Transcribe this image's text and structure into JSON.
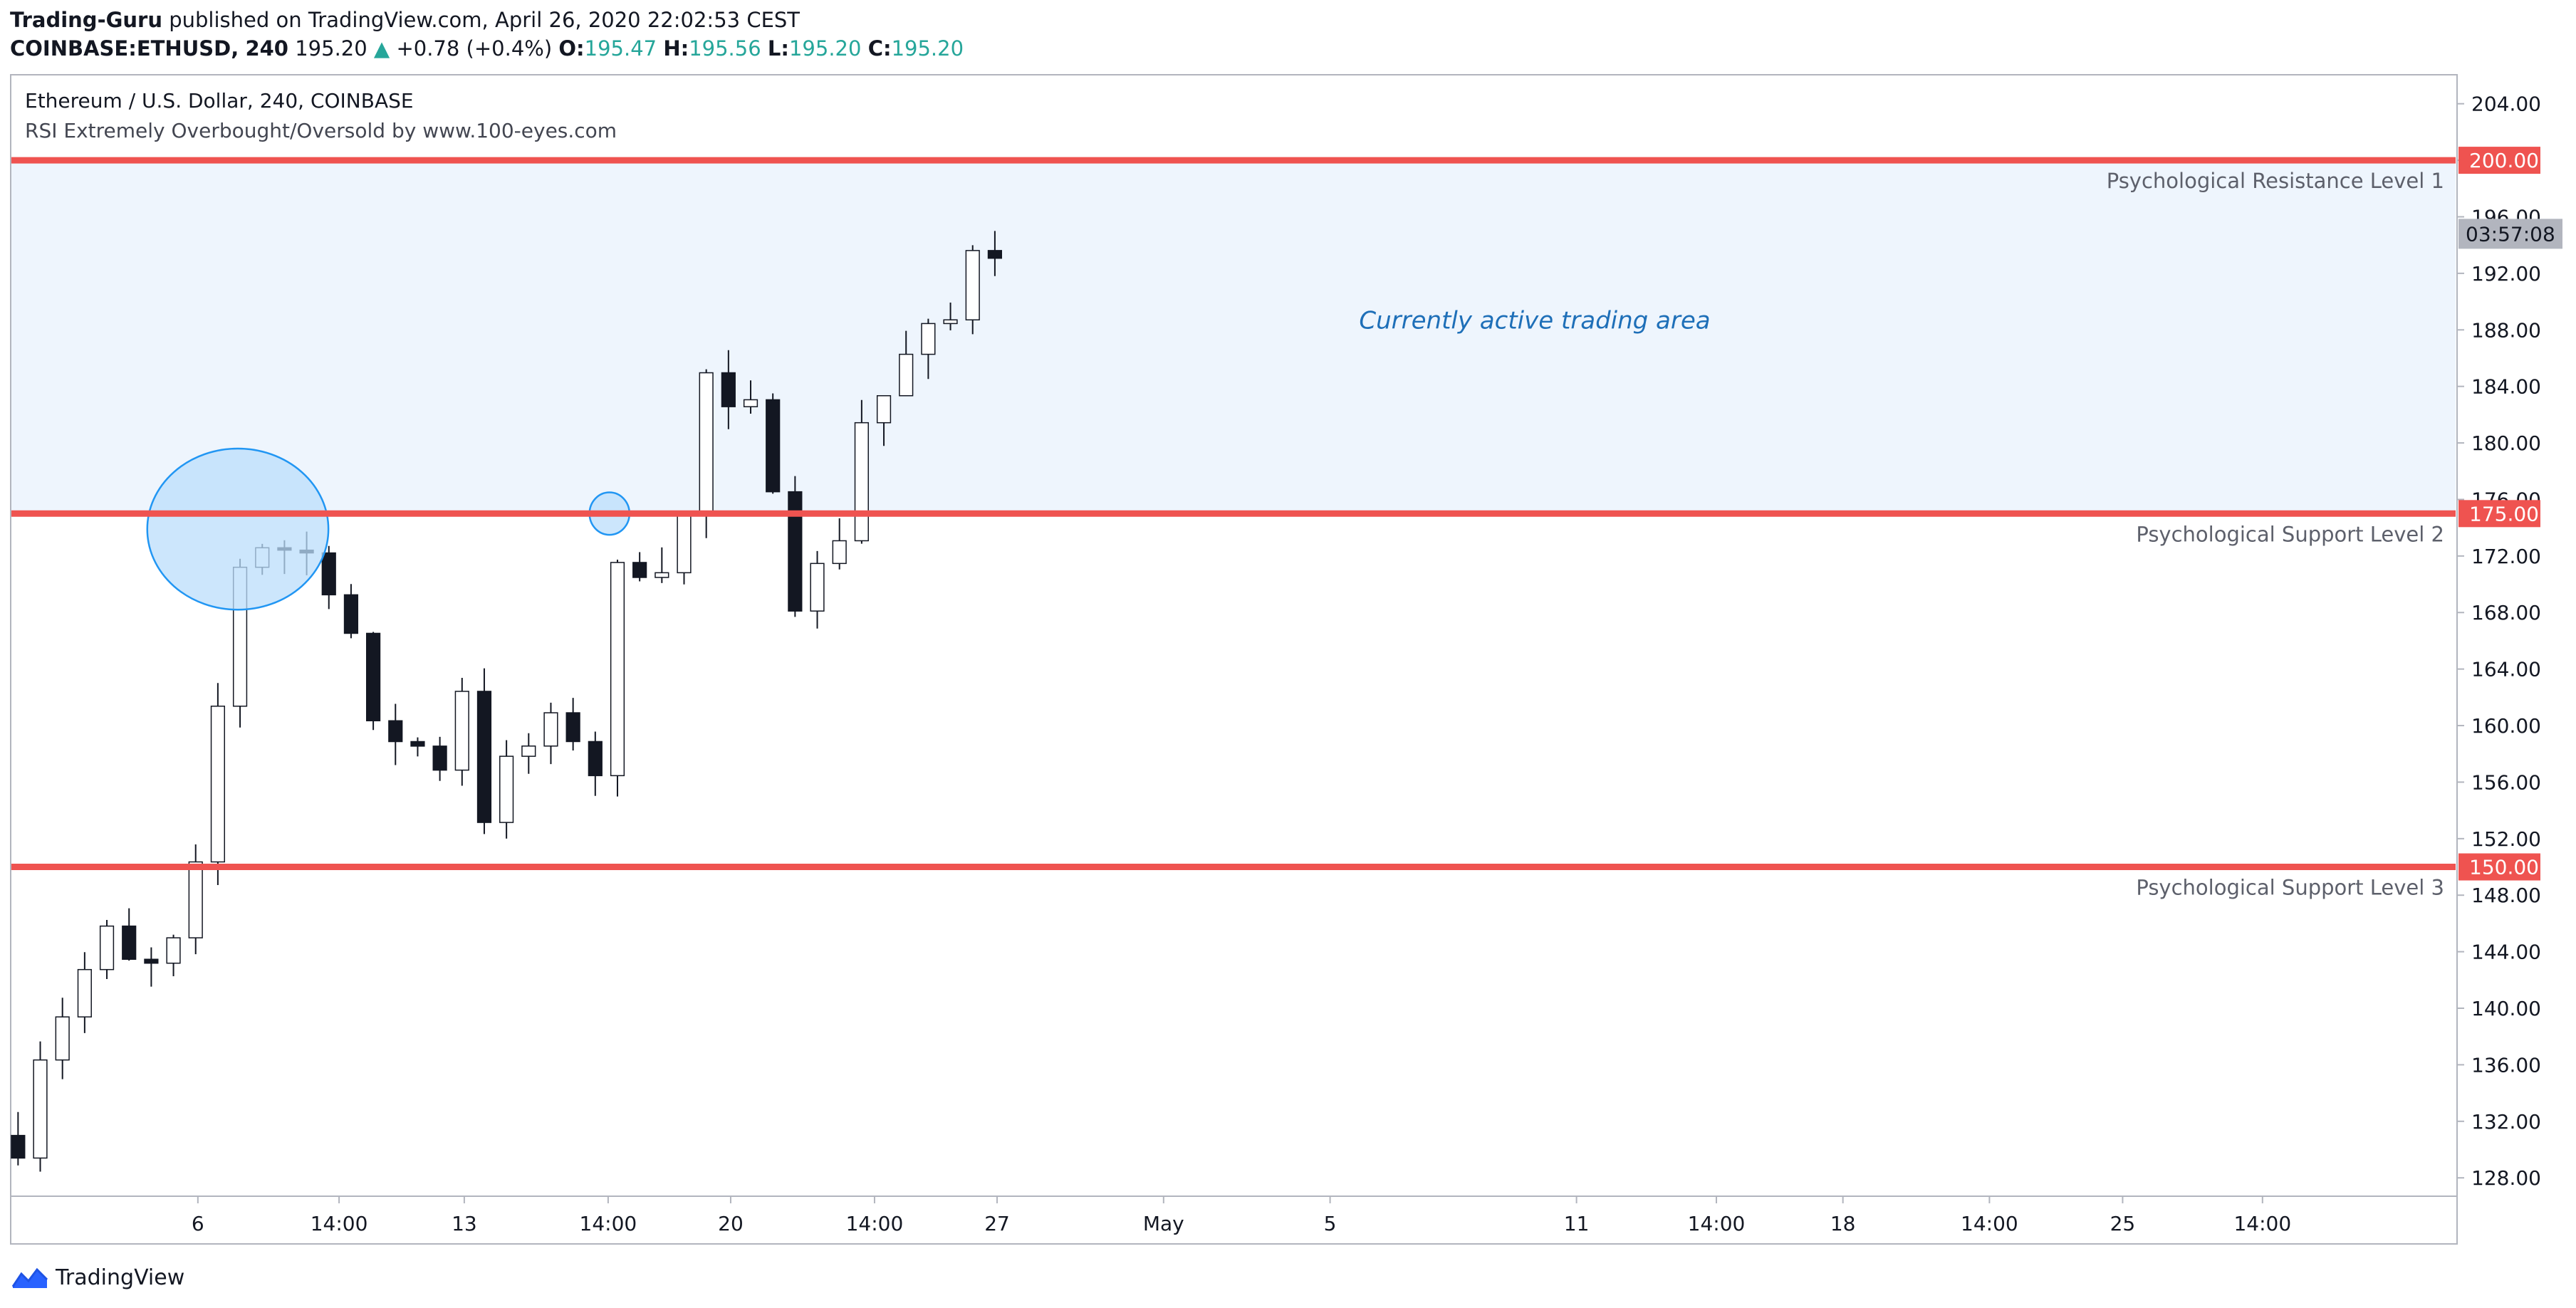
{
  "header": {
    "author": "Trading-Guru",
    "published_text": "published on TradingView.com, April 26, 2020 22:02:53 CEST",
    "symbol": "COINBASE:ETHUSD,",
    "timeframe": "240",
    "last_price": "195.20",
    "change": "+0.78 (+0.4%)",
    "o_label": "O:",
    "o_value": "195.47",
    "h_label": "H:",
    "h_value": "195.56",
    "l_label": "L:",
    "l_value": "195.20",
    "c_label": "C:",
    "c_value": "195.20"
  },
  "legend": {
    "line1": "Ethereum / U.S. Dollar, 240, COINBASE",
    "line2": "RSI Extremely Overbought/Oversold by www.100-eyes.com"
  },
  "footer": {
    "brand": "TradingView"
  },
  "colors": {
    "level_line": "#ef5350",
    "zone_fill": "#eef5fd",
    "annotation_text": "#1e6fb8",
    "ellipse_stroke": "#2196f3",
    "ellipse_fill": "#bbdefb",
    "candle_up": "#ffffff",
    "candle_down": "#131722",
    "countdown_bg": "#b2b5be"
  },
  "chart_data": {
    "type": "candlestick",
    "y_ticks": [
      "204.00",
      "200.00",
      "196.00",
      "192.00",
      "188.00",
      "184.00",
      "180.00",
      "176.00",
      "172.00",
      "168.00",
      "164.00",
      "160.00",
      "156.00",
      "152.00",
      "148.00",
      "144.00",
      "140.00",
      "136.00",
      "132.00",
      "128.00"
    ],
    "ylim": [
      126.7,
      206.0
    ],
    "x_ticks": [
      {
        "label": "6",
        "t": 3.5
      },
      {
        "label": "14:00",
        "t": 4.56
      },
      {
        "label": "13",
        "t": 5.5
      },
      {
        "label": "14:00",
        "t": 6.58
      },
      {
        "label": "20",
        "t": 7.5
      },
      {
        "label": "14:00",
        "t": 8.58
      },
      {
        "label": "27",
        "t": 9.5
      },
      {
        "label": "May",
        "t": 10.75
      },
      {
        "label": "5",
        "t": 12
      },
      {
        "label": "11",
        "t": 13.85
      },
      {
        "label": "14:00",
        "t": 14.9
      },
      {
        "label": "18",
        "t": 15.85
      },
      {
        "label": "14:00",
        "t": 16.95
      },
      {
        "label": "25",
        "t": 17.95
      },
      {
        "label": "14:00",
        "t": 19.0
      }
    ],
    "xlim": [
      2.1,
      20.45
    ],
    "levels": [
      {
        "price": 200.0,
        "label": "200.00",
        "name": "Psychological Resistance Level 1"
      },
      {
        "price": 175.0,
        "label": "175.00",
        "name": "Psychological Support Level 2"
      },
      {
        "price": 150.0,
        "label": "150.00",
        "name": "Psychological Support Level 3"
      }
    ],
    "zone": {
      "from": 175.0,
      "to": 200.0,
      "text": "Currently active trading area"
    },
    "countdown": "03:57:08",
    "last_price": 195.2,
    "ellipses": [
      {
        "t": 3.8,
        "price": 173.9,
        "rt": 0.68,
        "rp": 5.7
      },
      {
        "t": 6.59,
        "price": 175.0,
        "rt": 0.15,
        "rp": 1.5
      }
    ],
    "anchors": [
      {
        "t": 2.15,
        "p": 131.0
      },
      {
        "t": 2.3,
        "p": 137.0
      },
      {
        "t": 2.55,
        "p": 141.0
      },
      {
        "t": 2.8,
        "p": 145.0
      },
      {
        "t": 3.05,
        "p": 142.0
      },
      {
        "t": 3.3,
        "p": 143.5
      },
      {
        "t": 3.5,
        "p": 149.5
      },
      {
        "t": 3.7,
        "p": 165.0
      },
      {
        "t": 3.85,
        "p": 173.5
      },
      {
        "t": 4.2,
        "p": 172.5
      },
      {
        "t": 4.45,
        "p": 171.5
      },
      {
        "t": 4.65,
        "p": 166.5
      },
      {
        "t": 4.8,
        "p": 159.0
      },
      {
        "t": 5.05,
        "p": 159.5
      },
      {
        "t": 5.3,
        "p": 157.0
      },
      {
        "t": 5.5,
        "p": 163.5
      },
      {
        "t": 5.65,
        "p": 154.0
      },
      {
        "t": 5.9,
        "p": 158.0
      },
      {
        "t": 6.15,
        "p": 159.5
      },
      {
        "t": 6.3,
        "p": 160.5
      },
      {
        "t": 6.45,
        "p": 153.0
      },
      {
        "t": 6.55,
        "p": 165.0
      },
      {
        "t": 6.7,
        "p": 173.0
      },
      {
        "t": 6.9,
        "p": 171.0
      },
      {
        "t": 7.15,
        "p": 174.5
      },
      {
        "t": 7.3,
        "p": 185.0
      },
      {
        "t": 7.5,
        "p": 181.0
      },
      {
        "t": 7.7,
        "p": 182.0
      },
      {
        "t": 7.85,
        "p": 177.0
      },
      {
        "t": 7.95,
        "p": 169.5
      },
      {
        "t": 8.2,
        "p": 171.0
      },
      {
        "t": 8.4,
        "p": 176.0
      },
      {
        "t": 8.5,
        "p": 183.0
      },
      {
        "t": 8.7,
        "p": 183.5
      },
      {
        "t": 8.85,
        "p": 186.5
      },
      {
        "t": 9.05,
        "p": 187.5
      },
      {
        "t": 9.2,
        "p": 189.0
      },
      {
        "t": 9.3,
        "p": 194.5
      },
      {
        "t": 9.5,
        "p": 194.5
      },
      {
        "t": 9.55,
        "p": 195.2
      }
    ]
  }
}
